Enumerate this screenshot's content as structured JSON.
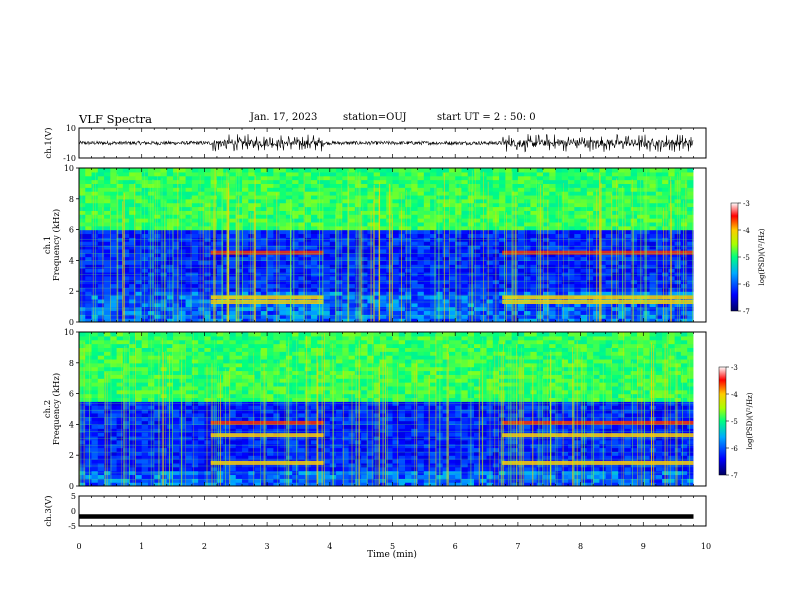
{
  "header": {
    "title": "VLF Spectra",
    "date": "Jan. 17, 2023",
    "station": "station=OUJ",
    "start": "start  UT =   2 : 50: 0"
  },
  "chart_data": [
    {
      "type": "line",
      "name_label": "ch.1(V)",
      "ylabel": "ch.1(V)",
      "ylim": [
        -10,
        10
      ],
      "yticks": [
        "10",
        "-10"
      ],
      "xlim": [
        0,
        10
      ],
      "description_values": {
        "quiet_amplitude_V": 1.2,
        "burst_amplitude_V": 6.0,
        "active_intervals_min": [
          [
            2.1,
            3.9
          ],
          [
            6.75,
            9.8
          ]
        ]
      }
    },
    {
      "type": "heatmap",
      "ylabel": "ch.1\nFrequency (kHz)",
      "ylabel_top": "ch.1",
      "ylabel_bottom": "Frequency (kHz)",
      "ylim": [
        0,
        10
      ],
      "yticks": [
        "10",
        "8",
        "6",
        "4",
        "2",
        "0"
      ],
      "xlim": [
        0,
        10
      ],
      "colorbar": {
        "label": "log(PSD)(V²/Hz)",
        "range": [
          -7,
          -3
        ],
        "ticks": [
          "-3",
          "-4",
          "-5",
          "-6",
          "-7"
        ]
      },
      "bands_kHz": {
        "upper_green_above": 6.0,
        "dark_blue_range": [
          2.0,
          5.8
        ]
      },
      "active_intervals_min": [
        [
          2.1,
          3.9
        ],
        [
          6.75,
          9.8
        ]
      ],
      "enhanced_lines_kHz": [
        4.5,
        1.6,
        1.3
      ]
    },
    {
      "type": "heatmap",
      "ylabel": "ch.2\nFrequency (kHz)",
      "ylabel_top": "ch.2",
      "ylabel_bottom": "Frequency (kHz)",
      "ylim": [
        0,
        10
      ],
      "yticks": [
        "10",
        "8",
        "6",
        "4",
        "2",
        "0"
      ],
      "xlim": [
        0,
        10
      ],
      "colorbar": {
        "label": "log(PSD)(V²/Hz)",
        "range": [
          -7,
          -3
        ],
        "ticks": [
          "-3",
          "-4",
          "-5",
          "-6",
          "-7"
        ]
      },
      "bands_kHz": {
        "upper_green_above": 5.5,
        "dark_blue_range": [
          1.0,
          5.5
        ]
      },
      "active_intervals_min": [
        [
          2.1,
          3.9
        ],
        [
          6.75,
          9.8
        ]
      ],
      "enhanced_lines_kHz": [
        4.1,
        3.3,
        1.5
      ]
    },
    {
      "type": "line",
      "ylabel": "ch.3(V)",
      "ylim": [
        -5,
        5
      ],
      "yticks": [
        "5",
        "0",
        "-5"
      ],
      "xlim": [
        0,
        10
      ],
      "x": [
        0,
        9.8
      ],
      "y": [
        -1.5,
        -1.5
      ]
    }
  ],
  "xaxis": {
    "label": "Time (min)",
    "ticks": [
      "0",
      "1",
      "2",
      "3",
      "4",
      "5",
      "6",
      "7",
      "8",
      "9",
      "10"
    ]
  }
}
